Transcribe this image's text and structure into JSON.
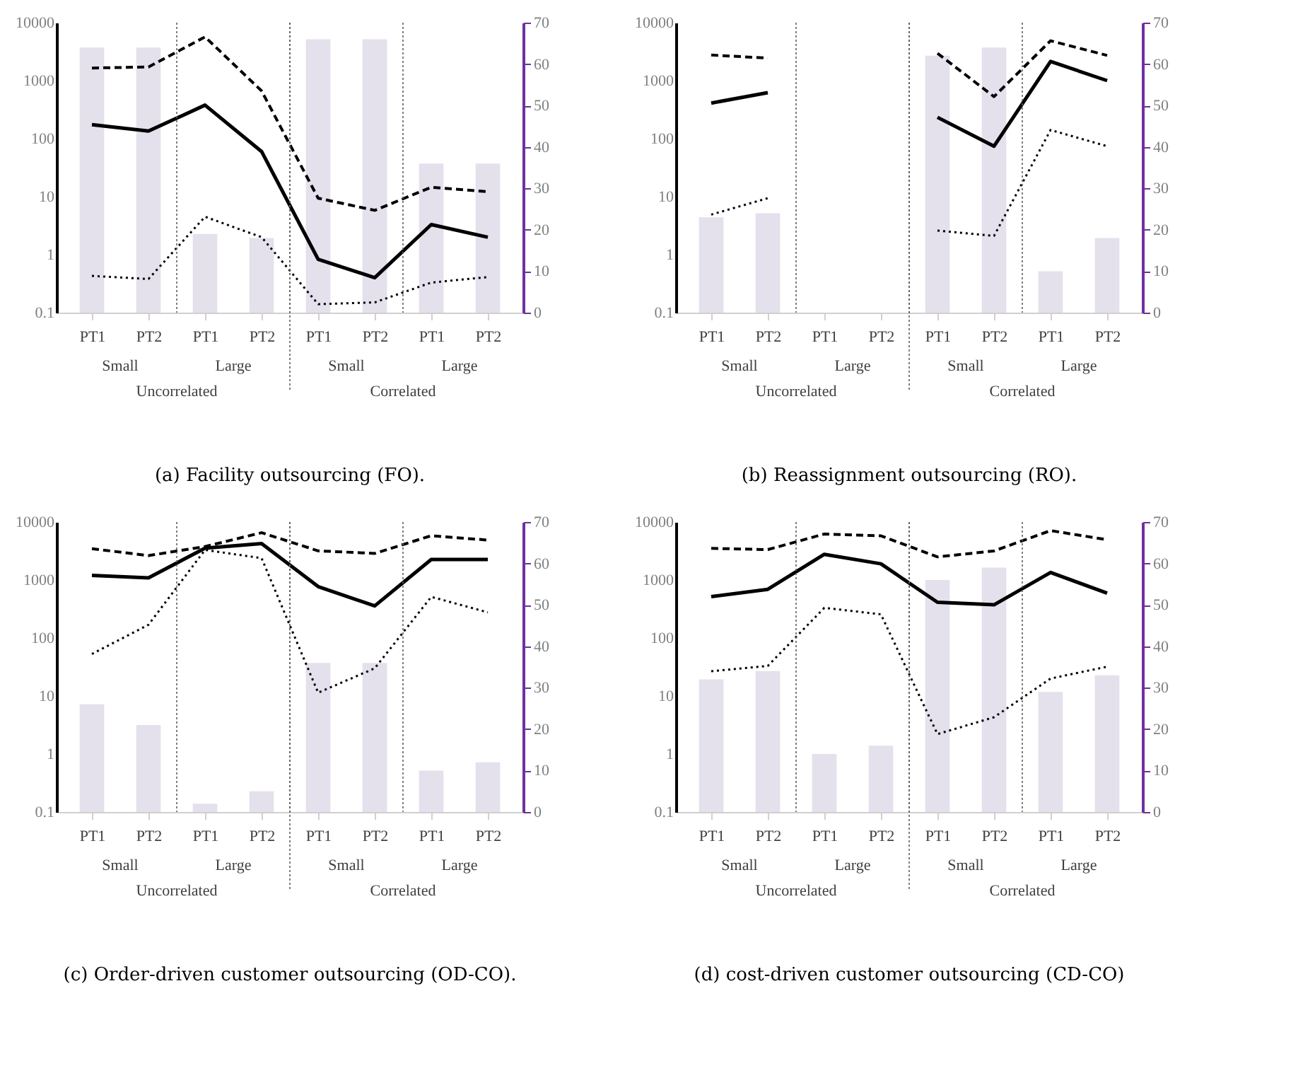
{
  "chart_data": [
    {
      "type": "line",
      "title": "(a)  Facility outsourcing (FO).",
      "categories": [
        "PT1",
        "PT2",
        "PT1",
        "PT2",
        "PT1",
        "PT2",
        "PT1",
        "PT2"
      ],
      "annotations": [
        "Small",
        "Large",
        "Small",
        "Large",
        "Uncorrelated",
        "Correlated"
      ],
      "log": "y",
      "ylim": [
        0.1,
        10000
      ],
      "yticks": [
        0.1,
        1,
        10,
        100,
        1000,
        10000
      ],
      "y2lim": [
        0,
        70
      ],
      "y2ticks": [
        0,
        10,
        20,
        30,
        40,
        50,
        60,
        70
      ],
      "grid": false,
      "legend": false,
      "marker": "none",
      "series": [
        {
          "type": "bar",
          "axis": "y2",
          "color": "#e4e0ec",
          "values": [
            64,
            64,
            19,
            18,
            66,
            66,
            36,
            36
          ]
        },
        {
          "line_style": "dashed",
          "color": "#000000",
          "values": [
            1650,
            1720,
            5680,
            665,
            9.4,
            5.8,
            14.5,
            12.2
          ]
        },
        {
          "line_style": "solid",
          "color": "#000000",
          "values": [
            174,
            135,
            378,
            60,
            0.83,
            0.4,
            3.3,
            2.0
          ]
        },
        {
          "line_style": "dotted",
          "color": "#000000",
          "values": [
            0.43,
            0.38,
            4.5,
            2.0,
            0.14,
            0.15,
            0.33,
            0.41
          ]
        }
      ]
    },
    {
      "type": "line",
      "title": "(b)  Reassignment outsourcing (RO).",
      "categories": [
        "PT1",
        "PT2",
        "PT1",
        "PT2",
        "PT1",
        "PT2",
        "PT1",
        "PT2"
      ],
      "annotations": [
        "Small",
        "Large",
        "Small",
        "Large",
        "Uncorrelated",
        "Correlated"
      ],
      "log": "y",
      "ylim": [
        0.1,
        10000
      ],
      "yticks": [
        0.1,
        1,
        10,
        100,
        1000,
        10000
      ],
      "y2lim": [
        0,
        70
      ],
      "y2ticks": [
        0,
        10,
        20,
        30,
        40,
        50,
        60,
        70
      ],
      "grid": false,
      "legend": false,
      "marker": "none",
      "series": [
        {
          "type": "bar",
          "axis": "y2",
          "color": "#e4e0ec",
          "values": [
            23,
            24,
            null,
            null,
            62,
            64,
            10,
            18
          ]
        },
        {
          "line_style": "dashed",
          "color": "#000000",
          "values": [
            2760,
            2450,
            null,
            null,
            2960,
            530,
            4870,
            2720
          ]
        },
        {
          "line_style": "solid",
          "color": "#000000",
          "values": [
            410,
            620,
            null,
            null,
            233,
            74,
            2140,
            1000
          ]
        },
        {
          "line_style": "dotted",
          "color": "#000000",
          "values": [
            4.9,
            9.4,
            null,
            null,
            2.6,
            2.1,
            141,
            74
          ]
        }
      ]
    },
    {
      "type": "line",
      "title": "(c)  Order-driven customer outsourcing (OD-CO).",
      "categories": [
        "PT1",
        "PT2",
        "PT1",
        "PT2",
        "PT1",
        "PT2",
        "PT1",
        "PT2"
      ],
      "annotations": [
        "Small",
        "Large",
        "Small",
        "Large",
        "Uncorrelated",
        "Correlated"
      ],
      "log": "y",
      "ylim": [
        0.1,
        10000
      ],
      "yticks": [
        0.1,
        1,
        10,
        100,
        1000,
        10000
      ],
      "y2lim": [
        0,
        70
      ],
      "y2ticks": [
        0,
        10,
        20,
        30,
        40,
        50,
        60,
        70
      ],
      "grid": false,
      "legend": false,
      "marker": "none",
      "series": [
        {
          "type": "bar",
          "axis": "y2",
          "color": "#e4e0ec",
          "values": [
            26,
            21,
            2,
            5,
            36,
            36,
            10,
            12
          ]
        },
        {
          "line_style": "dashed",
          "color": "#000000",
          "values": [
            3470,
            2630,
            3770,
            6540,
            3180,
            2870,
            5800,
            4880
          ]
        },
        {
          "line_style": "solid",
          "color": "#000000",
          "values": [
            1200,
            1090,
            3530,
            4250,
            770,
            357,
            2260,
            2260
          ]
        },
        {
          "line_style": "dotted",
          "color": "#000000",
          "values": [
            53,
            169,
            3300,
            2380,
            11.4,
            30,
            512,
            277
          ]
        }
      ]
    },
    {
      "type": "line",
      "title": "(d)  cost-driven customer outsourcing (CD-CO)",
      "categories": [
        "PT1",
        "PT2",
        "PT1",
        "PT2",
        "PT1",
        "PT2",
        "PT1",
        "PT2"
      ],
      "annotations": [
        "Small",
        "Large",
        "Small",
        "Large",
        "Uncorrelated",
        "Correlated"
      ],
      "log": "y",
      "ylim": [
        0.1,
        10000
      ],
      "yticks": [
        0.1,
        1,
        10,
        100,
        1000,
        10000
      ],
      "y2lim": [
        0,
        70
      ],
      "y2ticks": [
        0,
        10,
        20,
        30,
        40,
        50,
        60,
        70
      ],
      "grid": false,
      "legend": false,
      "marker": "none",
      "series": [
        {
          "type": "bar",
          "axis": "y2",
          "color": "#e4e0ec",
          "values": [
            32,
            34,
            14,
            16,
            56,
            59,
            29,
            33
          ]
        },
        {
          "line_style": "dashed",
          "color": "#000000",
          "values": [
            3510,
            3340,
            6200,
            5780,
            2500,
            3170,
            7100,
            4950
          ]
        },
        {
          "line_style": "solid",
          "color": "#000000",
          "values": [
            516,
            690,
            2770,
            1900,
            413,
            373,
            1350,
            592
          ]
        },
        {
          "line_style": "dotted",
          "color": "#000000",
          "values": [
            26.7,
            33,
            331,
            256,
            2.2,
            4.3,
            20,
            32
          ]
        }
      ]
    }
  ]
}
